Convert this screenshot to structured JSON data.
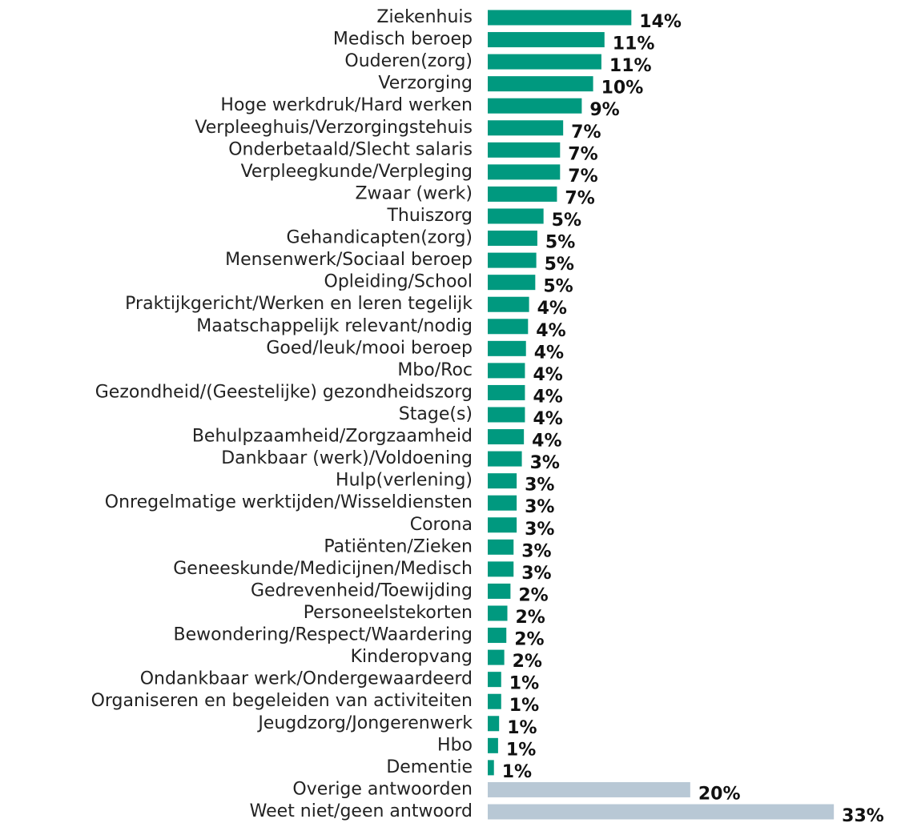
{
  "chart_data": {
    "type": "barh",
    "categories": [
      "Ziekenhuis",
      "Medisch beroep",
      "Ouderen(zorg)",
      "Verzorging",
      "Hoge werkdruk/Hard werken",
      "Verpleeghuis/Verzorgingstehuis",
      "Onderbetaald/Slecht salaris",
      "Verpleegkunde/Verpleging",
      "Zwaar (werk)",
      "Thuiszorg",
      "Gehandicapten(zorg)",
      "Mensenwerk/Sociaal beroep",
      "Opleiding/School",
      "Praktijkgericht/Werken en leren tegelijk",
      "Maatschappelijk relevant/nodig",
      "Goed/leuk/mooi beroep",
      "Mbo/Roc",
      "Gezondheid/(Geestelijke) gezondheidszorg",
      "Stage(s)",
      "Behulpzaamheid/Zorgzaamheid",
      "Dankbaar (werk)/Voldoening",
      "Hulp(verlening)",
      "Onregelmatige werktijden/Wisseldiensten",
      "Corona",
      "Patiënten/Zieken",
      "Geneeskunde/Medicijnen/Medisch",
      "Gedrevenheid/Toewijding",
      "Personeelstekorten",
      "Bewondering/Respect/Waardering",
      "Kinderopvang",
      "Ondankbaar werk/Ondergewaardeerd",
      "Organiseren en begeleiden van activiteiten",
      "Jeugdzorg/Jongerenwerk",
      "Hbo",
      "Dementie",
      "Overige antwoorden",
      "Weet niet/geen antwoord"
    ],
    "values": [
      13.9,
      11.3,
      11.0,
      10.2,
      9.1,
      7.3,
      7.0,
      7.0,
      6.7,
      5.4,
      4.8,
      4.7,
      4.6,
      4.0,
      3.9,
      3.7,
      3.6,
      3.6,
      3.6,
      3.5,
      3.3,
      2.8,
      2.8,
      2.8,
      2.5,
      2.5,
      2.2,
      1.9,
      1.8,
      1.6,
      1.3,
      1.3,
      1.1,
      1.0,
      0.6,
      19.6,
      33.5
    ],
    "value_labels": [
      "14%",
      "11%",
      "11%",
      "10%",
      "9%",
      "7%",
      "7%",
      "7%",
      "7%",
      "5%",
      "5%",
      "5%",
      "5%",
      "4%",
      "4%",
      "4%",
      "4%",
      "4%",
      "4%",
      "4%",
      "3%",
      "3%",
      "3%",
      "3%",
      "3%",
      "3%",
      "2%",
      "2%",
      "2%",
      "2%",
      "1%",
      "1%",
      "1%",
      "1%",
      "1%",
      "20%",
      "33%"
    ],
    "colors": [
      "#00997f",
      "#00997f",
      "#00997f",
      "#00997f",
      "#00997f",
      "#00997f",
      "#00997f",
      "#00997f",
      "#00997f",
      "#00997f",
      "#00997f",
      "#00997f",
      "#00997f",
      "#00997f",
      "#00997f",
      "#00997f",
      "#00997f",
      "#00997f",
      "#00997f",
      "#00997f",
      "#00997f",
      "#00997f",
      "#00997f",
      "#00997f",
      "#00997f",
      "#00997f",
      "#00997f",
      "#00997f",
      "#00997f",
      "#00997f",
      "#00997f",
      "#00997f",
      "#00997f",
      "#00997f",
      "#00997f",
      "#b8c8d5",
      "#b8c8d5"
    ],
    "xlim": [
      0,
      40
    ]
  }
}
